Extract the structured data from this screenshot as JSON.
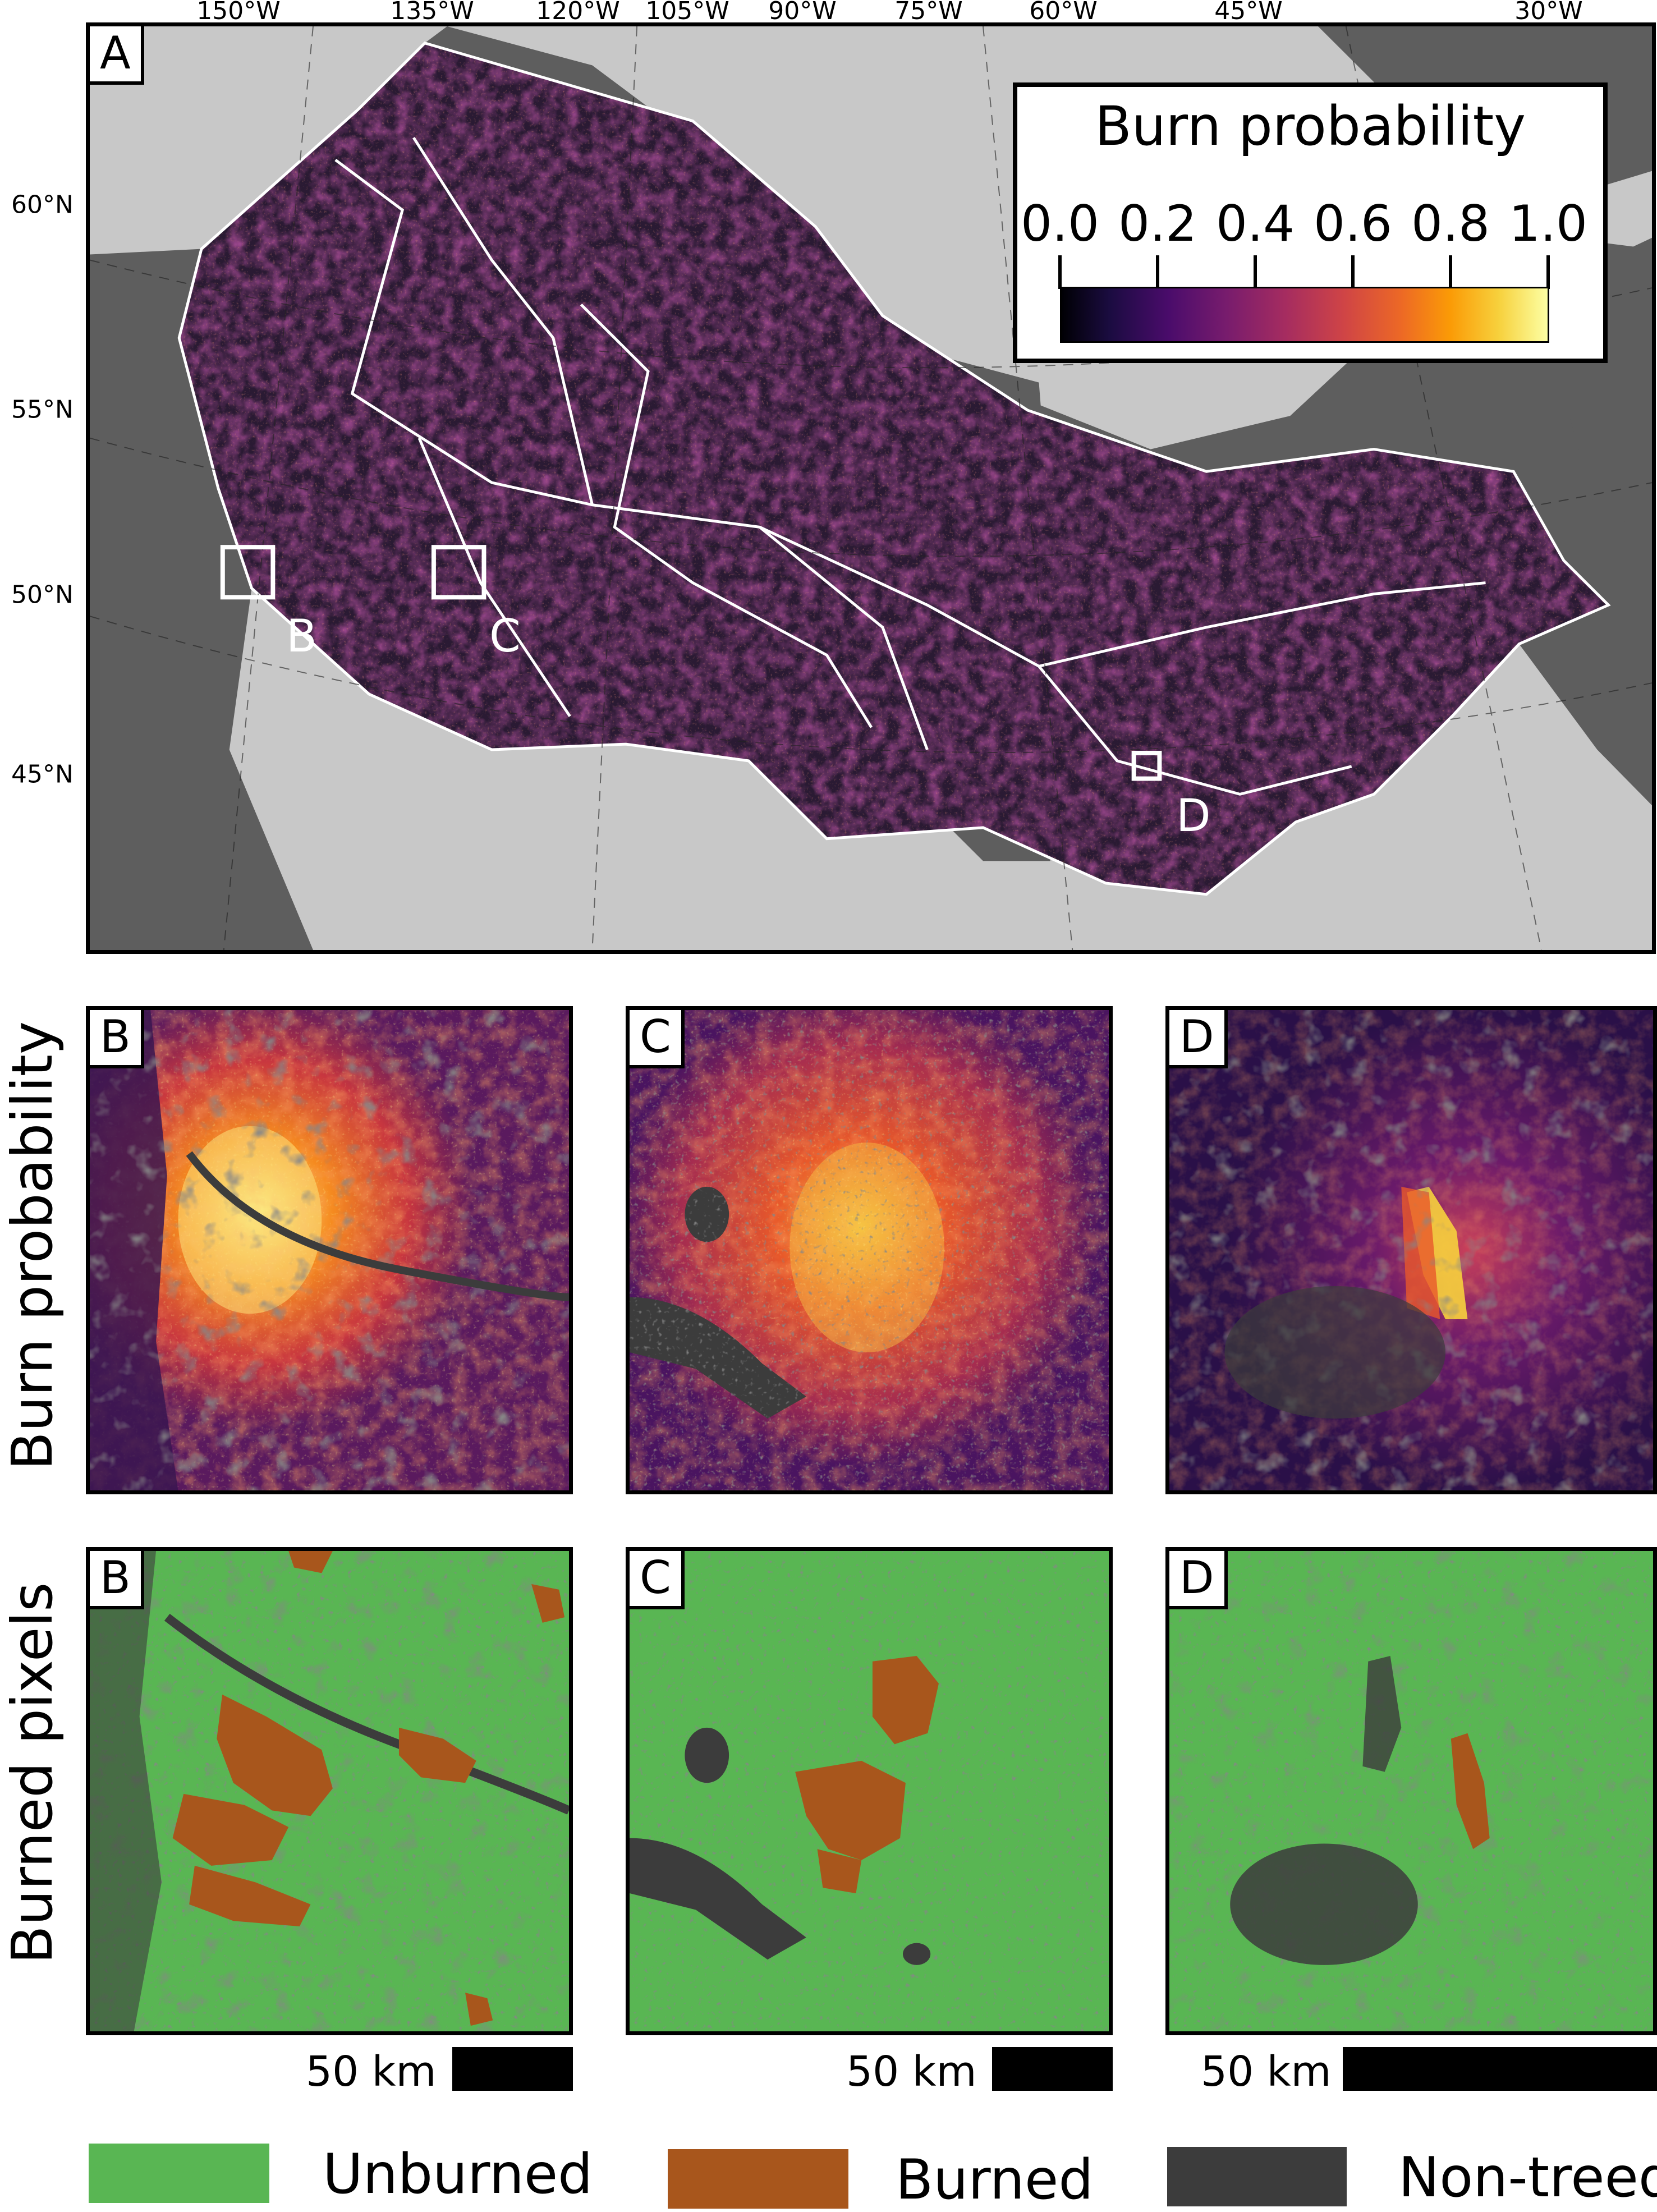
{
  "map_a": {
    "panel_label": "A",
    "longitude_labels": [
      "150°W",
      "135°W",
      "120°W",
      "105°W",
      "90°W",
      "75°W",
      "60°W",
      "45°W",
      "30°W"
    ],
    "latitude_labels": [
      "60°N",
      "55°N",
      "50°N",
      "45°N"
    ],
    "inset_labels": [
      "B",
      "C",
      "D"
    ]
  },
  "legend": {
    "title": "Burn probability",
    "ticks": [
      "0.0",
      "0.2",
      "0.4",
      "0.6",
      "0.8",
      "1.0"
    ],
    "colormap": [
      "#000004",
      "#1b0c41",
      "#4a0c6b",
      "#781c6d",
      "#a52c60",
      "#cf4446",
      "#ed6925",
      "#fb9b06",
      "#f7d13d",
      "#fcffa4"
    ]
  },
  "rows": {
    "burn_probability": {
      "label": "Burn probability",
      "panels": [
        "B",
        "C",
        "D"
      ]
    },
    "burned_pixels": {
      "label": "Burned pixels",
      "panels": [
        "B",
        "C",
        "D"
      ]
    }
  },
  "scale_bars": [
    {
      "panel": "B",
      "label": "50 km"
    },
    {
      "panel": "C",
      "label": "50 km"
    },
    {
      "panel": "D",
      "label": "50 km"
    }
  ],
  "categories": [
    {
      "name": "Unburned",
      "color": "#59b653"
    },
    {
      "name": "Burned",
      "color": "#a8561c"
    },
    {
      "name": "Non-treed",
      "color": "#3c3c3c"
    }
  ],
  "colors": {
    "water": "#5e5e5e",
    "land_outside": "#c8c8c8",
    "study_area_low": "#2a1a33",
    "boundary": "#ffffff"
  }
}
